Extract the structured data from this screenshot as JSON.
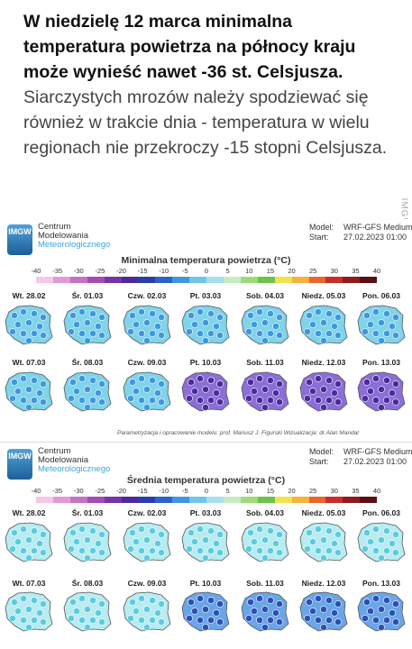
{
  "article": {
    "bold_text": "W niedzielę 12 marca minimalna temperatura powietrza na północy kraju może wynieść nawet -36 st. Celsjusza",
    "bold_end": ".",
    "normal_text": "Siarczystych mrozów należy spodziewać się również w trakcie dnia - temperatura w wielu regionach nie przekroczy -15 stopni Celsjusza."
  },
  "watermark": "IMGW",
  "panels": [
    {
      "org": {
        "line1": "Centrum",
        "line2": "Modelowania",
        "line3": "Meteorologicznego",
        "logo": "IMGW"
      },
      "model_label": "Model:",
      "model_value": "WRF-GFS Medium",
      "start_label": "Start:",
      "start_value": "27.02.2023 01:00",
      "title": "Minimalna temperatura powietrza (°C)",
      "scale": [
        "-40",
        "-35",
        "-30",
        "-25",
        "-20",
        "-15",
        "-10",
        "-5",
        "0",
        "5",
        "10",
        "15",
        "20",
        "25",
        "30",
        "35",
        "40"
      ],
      "row1_days": [
        "Wt. 28.02",
        "Śr. 01.03",
        "Czw. 02.03",
        "Pt. 03.03",
        "Sob. 04.03",
        "Niedz. 05.03",
        "Pon. 06.03"
      ],
      "row2_days": [
        "Wt. 07.03",
        "Śr. 08.03",
        "Czw. 09.03",
        "Pt. 10.03",
        "Sob. 11.03",
        "Niedz. 12.03",
        "Pon. 13.03"
      ],
      "credits": "Parametryzacja i opracowanie modelu: prof. Mariusz J. Figurski   Wizualizacja: dr Alan Mandal"
    },
    {
      "org": {
        "line1": "Centrum",
        "line2": "Modelowania",
        "line3": "Meteorologicznego",
        "logo": "IMGW"
      },
      "model_label": "Model:",
      "model_value": "WRF-GFS Medium",
      "start_label": "Start:",
      "start_value": "27.02.2023 01:00",
      "title": "Średnia temperatura powietrza (°C)",
      "scale": [
        "-40",
        "-35",
        "-30",
        "-25",
        "-20",
        "-15",
        "-10",
        "-5",
        "0",
        "5",
        "10",
        "15",
        "20",
        "25",
        "30",
        "35",
        "40"
      ],
      "row1_days": [
        "Wt. 28.02",
        "Śr. 01.03",
        "Czw. 02.03",
        "Pt. 03.03",
        "Sob. 04.03",
        "Niedz. 05.03",
        "Pon. 06.03"
      ],
      "row2_days": [
        "Wt. 07.03",
        "Śr. 08.03",
        "Czw. 09.03",
        "Pt. 10.03",
        "Sob. 11.03",
        "Niedz. 12.03",
        "Pon. 13.03"
      ],
      "credits": ""
    }
  ],
  "colors": {
    "scale": [
      "#f4c8e6",
      "#e39ad4",
      "#c771c4",
      "#a24cb4",
      "#7a32a6",
      "#4d2a9c",
      "#2b3ea8",
      "#2b63c8",
      "#3f97df",
      "#6fc6ea",
      "#a6e0ee",
      "#c8ecc2",
      "#9fd97a",
      "#6cc24a",
      "#f0e34d",
      "#f6b23c",
      "#e8662f",
      "#c92d2a",
      "#8f1b1b",
      "#5a1010"
    ],
    "cold_light": "#7fd4ea",
    "cold_mid": "#3f97df",
    "cold_deep": "#4d2a9c",
    "mild": "#b8ecf0"
  }
}
